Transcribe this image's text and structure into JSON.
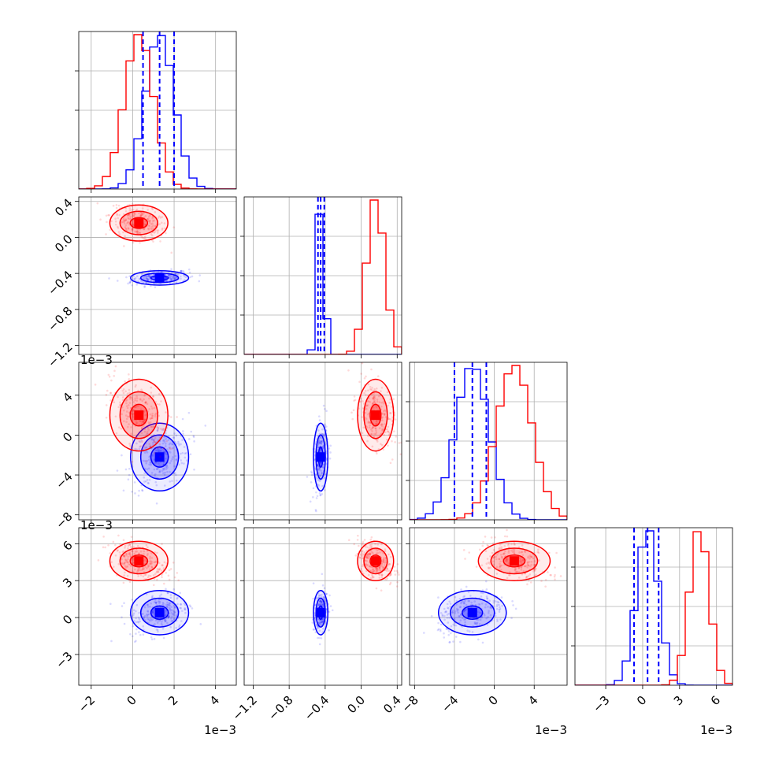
{
  "chart_data": {
    "type": "corner",
    "title": "",
    "xlabel": "",
    "ylabel": "",
    "n_params": 4,
    "colors": {
      "series_a": "#0000ff",
      "series_b": "#ff0000"
    },
    "params": [
      {
        "range": [
          -0.0026,
          0.005
        ],
        "ticks": [
          -0.002,
          0.0,
          0.002,
          0.004
        ],
        "tick_labels": [
          "−2",
          "0",
          "2",
          "4"
        ],
        "offset_label": "1e−3"
      },
      {
        "range": [
          -1.3,
          0.45
        ],
        "ticks": [
          -1.2,
          -0.8,
          -0.4,
          0.0,
          0.4
        ],
        "tick_labels": [
          "−1.2",
          "−0.8",
          "−0.4",
          "0.0",
          "0.4"
        ],
        "offset_label": ""
      },
      {
        "range": [
          -0.0085,
          0.0073
        ],
        "ticks": [
          -0.008,
          -0.004,
          0.0,
          0.004
        ],
        "tick_labels": [
          "−8",
          "−4",
          "0",
          "4"
        ],
        "offset_label": "1e−3"
      },
      {
        "range": [
          -0.0055,
          0.0073
        ],
        "ticks": [
          -0.003,
          0.0,
          0.003,
          0.006
        ],
        "tick_labels": [
          "−3",
          "0",
          "3",
          "6"
        ],
        "offset_label": "1e−3"
      }
    ],
    "series": [
      {
        "color": "#0000ff",
        "mean": [
          0.0013,
          -0.45,
          -0.0022,
          0.0004
        ],
        "std": [
          0.0007,
          0.04,
          0.0017,
          0.0009
        ],
        "quantiles": [
          [
            0.0005,
            0.0013,
            0.002
          ],
          [
            -0.48,
            -0.45,
            -0.41
          ],
          [
            -0.004,
            -0.0022,
            -0.0008
          ],
          [
            -0.0007,
            0.0004,
            0.0013
          ]
        ]
      },
      {
        "color": "#ff0000",
        "mean": [
          0.0003,
          0.16,
          0.002,
          0.0046
        ],
        "std": [
          0.0007,
          0.1,
          0.0018,
          0.0008
        ],
        "quantiles": []
      }
    ]
  }
}
